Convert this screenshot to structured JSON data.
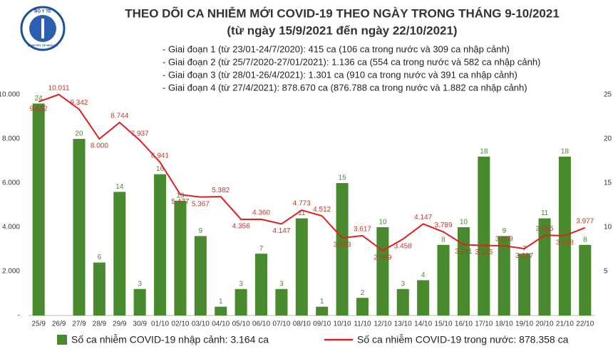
{
  "logo": {
    "top": "BỘ Y TẾ",
    "bottom": "MINISTRY OF HEALTH"
  },
  "chart_data": {
    "type": "bar",
    "title": "THEO DÕI CA NHIỄM MỚI COVID-19 THEO NGÀY TRONG THÁNG 9-10/2021",
    "subtitle": "(từ ngày 15/9/2021 đến ngày 22/10/2021)",
    "notes": [
      "- Giai đoạn 1 (từ 23/01-24/7/2020): 415 ca (106 ca trong nước và 309 ca nhập cảnh)",
      "- Giai đoạn 2 (từ 25/7/2020-27/01/2021): 1.136 ca (554 ca trong nước và 582 ca nhập cảnh)",
      "- Giai đoạn 3 (từ 28/01-26/4/2021): 1.301 ca (910 ca trong nước và 391 ca nhập cảnh)",
      "- Giai đoạn 4 (từ 27/4/2021): 878.670 ca (876.788 ca trong nước và 1.882 ca nhập cảnh)"
    ],
    "categories": [
      "25/9",
      "26/9",
      "27/9",
      "28/9",
      "29/9",
      "30/9",
      "01/10",
      "02/10",
      "03/10",
      "04/10",
      "05/10",
      "06/10",
      "07/10",
      "08/10",
      "09/10",
      "10/10",
      "11/10",
      "12/10",
      "13/10",
      "14/10",
      "15/10",
      "16/10",
      "17/10",
      "18/10",
      "19/10",
      "20/10",
      "21/10",
      "22/10"
    ],
    "series": [
      {
        "name": "Số ca nhiễm COVID-19 nhập cảnh: 3.164 ca",
        "type": "bar",
        "axis": "y2",
        "color": "#4a8a2e",
        "values": [
          24,
          null,
          20,
          6,
          14,
          3,
          16,
          13,
          9,
          1,
          3,
          7,
          3,
          11,
          1,
          15,
          2,
          10,
          3,
          4,
          8,
          10,
          18,
          9,
          7,
          11,
          18,
          8
        ]
      },
      {
        "name": "Số ca nhiễm COVID-19 trong nước: 878.358 ca",
        "type": "line",
        "axis": "y",
        "color": "#e02020",
        "values": [
          9682,
          10011,
          9342,
          8000,
          8744,
          7937,
          6941,
          5477,
          5367,
          5382,
          4356,
          4360,
          4147,
          4773,
          4512,
          3513,
          3617,
          2939,
          3458,
          4147,
          3789,
          3211,
          3175,
          3159,
          3027,
          3635,
          3618,
          3977
        ],
        "value_labels": [
          "9.682",
          "10.011",
          "9.342",
          "8.000",
          "8.744",
          "7.937",
          "6.941",
          "5.477",
          "5.367",
          "5.382",
          "4.356",
          "4.360",
          "4.147",
          "4.773",
          "4.512",
          "3.513",
          "3.617",
          "2.939",
          "3.458",
          "4.147",
          "3.789",
          "3.211",
          "3.175",
          "3.159",
          "3.027",
          "3.635",
          "3.618",
          "3.977"
        ]
      }
    ],
    "ylim": [
      0,
      10000
    ],
    "yticks": [
      {
        "value": 0,
        "label": "-"
      },
      {
        "value": 2000,
        "label": "2.000"
      },
      {
        "value": 4000,
        "label": "4.000"
      },
      {
        "value": 6000,
        "label": "6.000"
      },
      {
        "value": 8000,
        "label": "8.000"
      },
      {
        "value": 10000,
        "label": "10.000"
      }
    ],
    "y2lim": [
      0,
      25
    ],
    "y2ticks": [
      5,
      10,
      15,
      20,
      25
    ]
  }
}
